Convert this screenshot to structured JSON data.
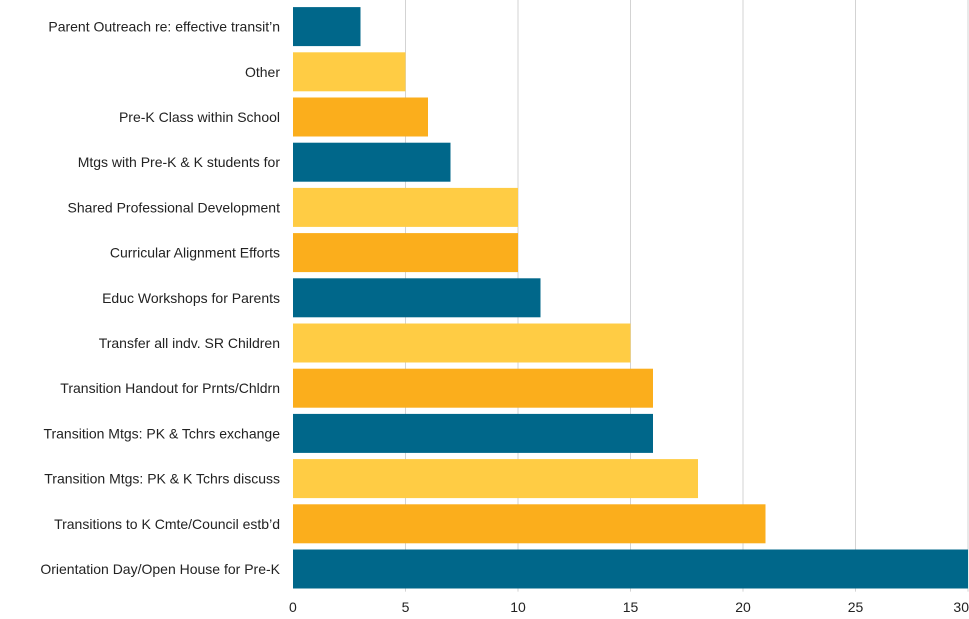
{
  "chart_data": {
    "type": "bar",
    "orientation": "horizontal",
    "title": "",
    "xlabel": "",
    "ylabel": "",
    "categories": [
      "Parent Outreach re: effective transit’n",
      "Other",
      "Pre-K Class within School",
      "Mtgs with Pre-K & K students for",
      "Shared Professional Development",
      "Curricular Alignment Efforts",
      "Educ Workshops for Parents",
      "Transfer all indv. SR Children",
      "Transition Handout for Prnts/Chldrn",
      "Transition Mtgs: PK & Tchrs exchange",
      "Transition Mtgs: PK & K Tchrs discuss",
      "Transitions to K Cmte/Council estb’d",
      "Orientation Day/Open House for Pre-K"
    ],
    "values": [
      3,
      5,
      6,
      7,
      10,
      10,
      11,
      15,
      16,
      16,
      18,
      21,
      30
    ],
    "xlim": [
      0,
      30
    ],
    "xticks": [
      0,
      5,
      10,
      15,
      20,
      25,
      30
    ],
    "grid": "vertical",
    "legend": "none",
    "bar_color_cycle": [
      "#00678a",
      "#ffcc44",
      "#fbae1c"
    ]
  }
}
